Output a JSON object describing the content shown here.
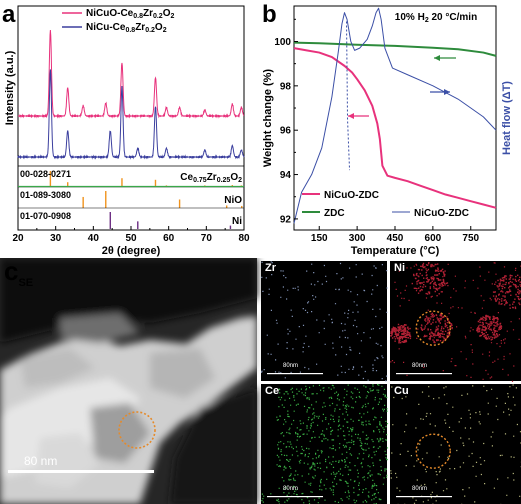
{
  "figure": {
    "panels": [
      {
        "id": "a",
        "letter": "a"
      },
      {
        "id": "b",
        "letter": "b"
      },
      {
        "id": "c",
        "letter": "c",
        "subscript": "SE"
      }
    ]
  },
  "chart_data": [
    {
      "type": "line",
      "panel": "a",
      "xlabel": "2θ (degree)",
      "ylabel": "Intensity (a.u.)",
      "xlim": [
        20,
        80
      ],
      "xticks": [
        20,
        30,
        40,
        50,
        60,
        70,
        80
      ],
      "legend": [
        {
          "name_parts": [
            "NiCuO-Ce",
            "0.8",
            "Zr",
            "0.2",
            "O",
            "2"
          ],
          "color": "#e8327c"
        },
        {
          "name_parts": [
            "NiCu-Ce",
            "0.8",
            "Zr",
            "0.2",
            "O",
            "2"
          ],
          "color": "#3b3f9e"
        }
      ],
      "series": [
        {
          "color": "#e8327c",
          "peaks": [
            {
              "x": 28.6,
              "h": 1.0
            },
            {
              "x": 33.2,
              "h": 0.33
            },
            {
              "x": 37.3,
              "h": 0.12
            },
            {
              "x": 43.3,
              "h": 0.15
            },
            {
              "x": 47.6,
              "h": 0.62
            },
            {
              "x": 56.5,
              "h": 0.45
            },
            {
              "x": 59.4,
              "h": 0.1
            },
            {
              "x": 62.9,
              "h": 0.1
            },
            {
              "x": 69.6,
              "h": 0.07
            },
            {
              "x": 76.9,
              "h": 0.14
            },
            {
              "x": 79.3,
              "h": 0.1
            }
          ]
        },
        {
          "color": "#3b3f9e",
          "peaks": [
            {
              "x": 28.6,
              "h": 1.0
            },
            {
              "x": 33.2,
              "h": 0.3
            },
            {
              "x": 44.5,
              "h": 0.3
            },
            {
              "x": 47.6,
              "h": 0.8
            },
            {
              "x": 51.8,
              "h": 0.1
            },
            {
              "x": 56.5,
              "h": 0.58
            },
            {
              "x": 59.4,
              "h": 0.1
            },
            {
              "x": 69.6,
              "h": 0.08
            },
            {
              "x": 76.9,
              "h": 0.13
            },
            {
              "x": 79.3,
              "h": 0.08
            }
          ]
        }
      ],
      "references": [
        {
          "card": "00-028-0271",
          "phase_parts": [
            "Ce",
            "0.75",
            "Zr",
            "0.25",
            "O",
            "2"
          ],
          "color": "#f0931e",
          "lines": [
            {
              "x": 28.6,
              "h": 1.0
            },
            {
              "x": 33.2,
              "h": 0.3
            },
            {
              "x": 47.6,
              "h": 0.55
            },
            {
              "x": 56.5,
              "h": 0.45
            },
            {
              "x": 59.4,
              "h": 0.1
            },
            {
              "x": 69.6,
              "h": 0.1
            },
            {
              "x": 76.9,
              "h": 0.12
            },
            {
              "x": 79.3,
              "h": 0.1
            }
          ]
        },
        {
          "card": "01-089-3080",
          "phase_parts": [
            "NiO"
          ],
          "color": "#f0931e",
          "lines": [
            {
              "x": 37.3,
              "h": 0.65
            },
            {
              "x": 43.3,
              "h": 1.0
            },
            {
              "x": 62.9,
              "h": 0.5
            },
            {
              "x": 75.4,
              "h": 0.15
            },
            {
              "x": 79.4,
              "h": 0.12
            }
          ]
        },
        {
          "card": "01-070-0908",
          "phase_parts": [
            "Ni"
          ],
          "color": "#6b2d82",
          "lines": [
            {
              "x": 44.5,
              "h": 1.0
            },
            {
              "x": 51.8,
              "h": 0.45
            },
            {
              "x": 76.4,
              "h": 0.2
            }
          ]
        }
      ]
    },
    {
      "type": "line",
      "panel": "b",
      "title": "10% H2  20 °C/min",
      "title_parts": [
        "10% H",
        "2",
        "  20 °C/min"
      ],
      "xlabel": "Temperature (°C)",
      "ylabel": "Weight change (%)",
      "y2label": "Heat flow (ΔT)",
      "xlim": [
        50,
        850
      ],
      "ylim": [
        91.5,
        101.6
      ],
      "xticks": [
        150,
        300,
        450,
        600,
        750
      ],
      "yticks": [
        92,
        94,
        96,
        98,
        100
      ],
      "legend": [
        {
          "name": "NiCuO-ZDC",
          "color": "#e8327c",
          "style": "solid"
        },
        {
          "name": "ZDC",
          "color": "#2e8b3c",
          "style": "solid"
        },
        {
          "name": "NiCuO-ZDC",
          "color": "#3b4fa6",
          "style": "thin"
        }
      ],
      "series": [
        {
          "color": "#e8327c",
          "axis": "left",
          "x": [
            50,
            100,
            150,
            200,
            250,
            280,
            300,
            330,
            360,
            380,
            390,
            400,
            420,
            450,
            500,
            550,
            600,
            650,
            700,
            750,
            800,
            850
          ],
          "y": [
            99.7,
            99.6,
            99.5,
            99.3,
            98.9,
            98.6,
            98.3,
            97.8,
            97.1,
            96.3,
            95.6,
            94.4,
            93.95,
            93.85,
            93.7,
            93.5,
            93.3,
            93.1,
            92.95,
            92.8,
            92.65,
            92.5
          ]
        },
        {
          "color": "#2e8b3c",
          "axis": "left",
          "x": [
            50,
            150,
            300,
            450,
            600,
            700,
            800,
            850
          ],
          "y": [
            99.95,
            99.92,
            99.85,
            99.8,
            99.72,
            99.65,
            99.5,
            99.35
          ]
        },
        {
          "color": "#3b4fa6",
          "axis": "right",
          "heat_flow_units": "arbitrary",
          "x": [
            50,
            80,
            120,
            160,
            200,
            225,
            240,
            250,
            260,
            275,
            290,
            310,
            340,
            360,
            375,
            385,
            395,
            410,
            440,
            500,
            600,
            700,
            800,
            850
          ],
          "y": [
            91.8,
            93.2,
            94.0,
            95.2,
            97.5,
            99.5,
            100.8,
            101.3,
            101.0,
            100.0,
            99.6,
            99.7,
            100.1,
            100.7,
            101.3,
            101.5,
            101.0,
            99.7,
            98.8,
            98.5,
            98.0,
            97.4,
            96.6,
            96.0
          ]
        }
      ]
    }
  ],
  "tem": {
    "scale_label": "80 nm",
    "maps": [
      {
        "element": "Zr",
        "color": "#8fa2c9",
        "scale_label": "80nm"
      },
      {
        "element": "Ni",
        "color": "#c4253a",
        "scale_label": "80nm"
      },
      {
        "element": "Ce",
        "color": "#3fbf4a",
        "scale_label": "80nm"
      },
      {
        "element": "Cu",
        "color": "#c9c98a",
        "scale_label": "80nm"
      }
    ]
  }
}
